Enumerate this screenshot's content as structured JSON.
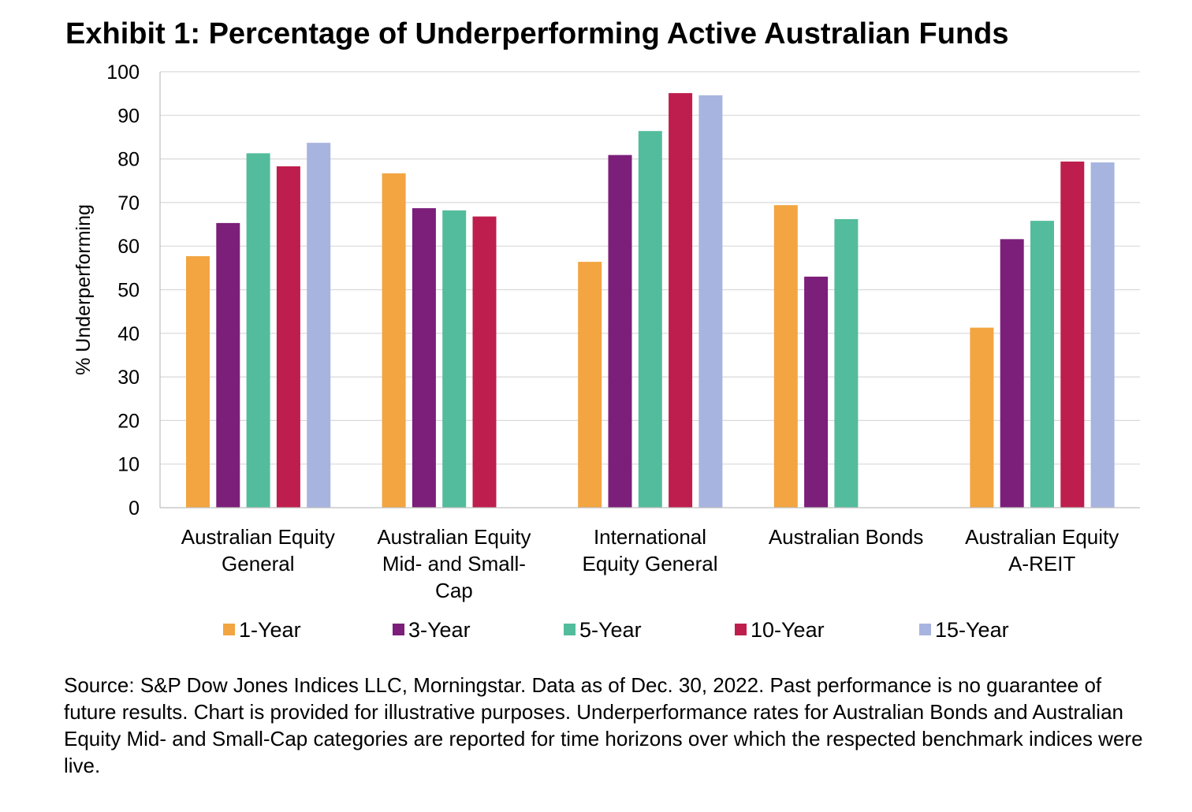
{
  "title": "Exhibit 1: Percentage of Underperforming Active Australian Funds",
  "source": "Source: S&P Dow Jones Indices LLC, Morningstar.  Data as of Dec. 30, 2022.  Past performance is no guarantee of future results.  Chart is provided for illustrative purposes.  Underperformance rates for Australian Bonds and Australian Equity Mid- and Small-Cap categories are reported for time horizons over which the respected benchmark indices were live.",
  "chart_data": {
    "type": "bar",
    "ylabel": "% Underperforming",
    "xlabel": "",
    "ylim": [
      0,
      100
    ],
    "yticks": [
      0,
      10,
      20,
      30,
      40,
      50,
      60,
      70,
      80,
      90,
      100
    ],
    "grid": true,
    "legend_position": "bottom",
    "categories": [
      [
        "Australian Equity",
        "General"
      ],
      [
        "Australian Equity",
        "Mid- and Small-",
        "Cap"
      ],
      [
        "International",
        "Equity General"
      ],
      [
        "Australian Bonds"
      ],
      [
        "Australian Equity",
        "A-REIT"
      ]
    ],
    "series": [
      {
        "name": "1-Year",
        "color": "#F2A541",
        "values": [
          57.7,
          76.7,
          56.4,
          69.4,
          41.3
        ]
      },
      {
        "name": "3-Year",
        "color": "#7B1F7A",
        "values": [
          65.3,
          68.7,
          80.9,
          53.0,
          61.6
        ]
      },
      {
        "name": "5-Year",
        "color": "#53BC9C",
        "values": [
          81.3,
          68.2,
          86.4,
          66.2,
          65.8
        ]
      },
      {
        "name": "10-Year",
        "color": "#BE1E4D",
        "values": [
          78.3,
          66.8,
          95.1,
          null,
          79.4
        ]
      },
      {
        "name": "15-Year",
        "color": "#A8B4E0",
        "values": [
          83.7,
          null,
          94.6,
          null,
          79.2
        ]
      }
    ]
  }
}
